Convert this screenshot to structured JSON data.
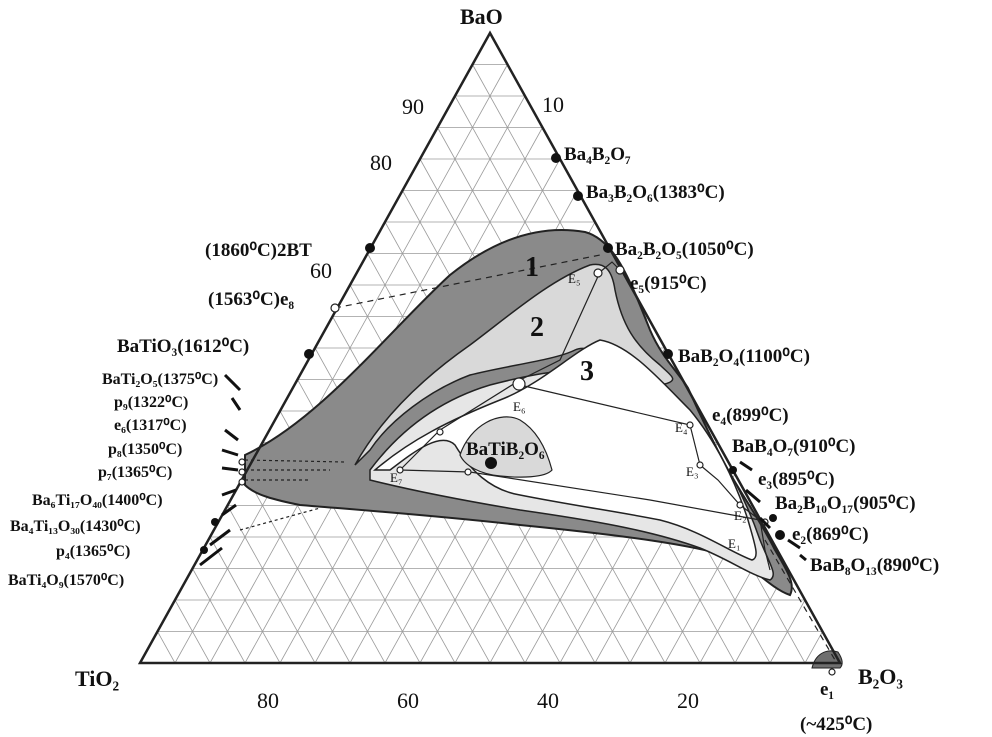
{
  "vertices": {
    "top": "BaO",
    "left": "TiO₂",
    "right": "B₂O₃"
  },
  "ticks": {
    "left_edge": [
      "90",
      "80",
      "60"
    ],
    "right_edge": [
      "10"
    ],
    "bottom": [
      "80",
      "60",
      "40",
      "20"
    ]
  },
  "compounds_right": [
    {
      "text": "Ba₄B₂O₇"
    },
    {
      "text": "Ba₃B₂O₆(1383⁰C)"
    },
    {
      "text": "Ba₂B₂O₅(1050⁰C)"
    },
    {
      "text": "e₅(915⁰C)"
    },
    {
      "text": "BaB₂O₄(1100⁰C)"
    },
    {
      "text": "e₄(899⁰C)"
    },
    {
      "text": "BaB₄O₇(910⁰C)"
    },
    {
      "text": "e₃(895⁰C)"
    },
    {
      "text": "Ba₂B₁₀O₁₇(905⁰C)"
    },
    {
      "text": "e₂(869⁰C)"
    },
    {
      "text": "BaB₈O₁₃(890⁰C)"
    }
  ],
  "compounds_left": [
    {
      "text": "(1860⁰C)2BT"
    },
    {
      "text": "(1563⁰C)e₈"
    },
    {
      "text": "BaTiO₃(1612⁰C)"
    },
    {
      "text": "BaTi₂O₅(1375⁰C)"
    },
    {
      "text": "p₉(1322⁰C)"
    },
    {
      "text": "e₆(1317⁰C)"
    },
    {
      "text": "p₈(1350⁰C)"
    },
    {
      "text": "p₇(1365⁰C)"
    },
    {
      "text": "Ba₆Ti₁₇O₄₀(1400⁰C)"
    },
    {
      "text": "Ba₄Ti₁₃O₃₀(1430⁰C)"
    },
    {
      "text": "p₄(1365⁰C)"
    },
    {
      "text": "BaTi₄O₉(1570⁰C)"
    }
  ],
  "bottom_labels": {
    "e1": "e₁",
    "e1_temp": "(~425⁰C)"
  },
  "regions": [
    "1",
    "2",
    "3"
  ],
  "center_compound": "BaTiB₂O₆",
  "eutectics": [
    "E₅",
    "E₆",
    "E₇",
    "E₄",
    "E₃",
    "E₂",
    "E₁"
  ],
  "colors": {
    "dark_region": "#8a8a8a",
    "light_region": "#d9d9d9",
    "line": "#222222"
  }
}
